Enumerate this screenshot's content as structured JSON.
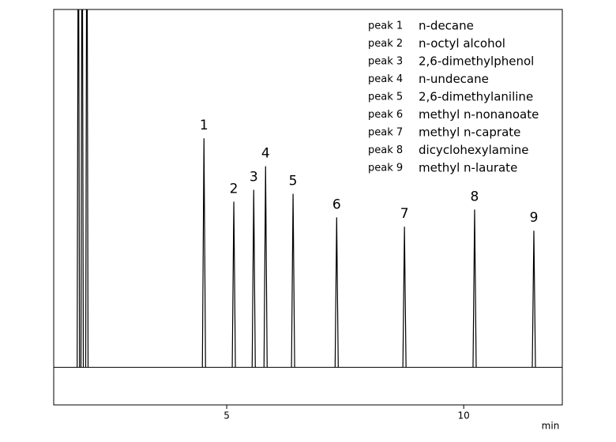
{
  "chart_data": {
    "type": "chromatogram",
    "x_label": "min",
    "xlim": [
      1.35,
      12.08
    ],
    "xticks": [
      5,
      10
    ],
    "ylim": [
      -10.5,
      100
    ],
    "color": "#000000",
    "solvent_peaks": [
      {
        "time": 1.87,
        "height": 150
      },
      {
        "time": 1.95,
        "height": 150
      },
      {
        "time": 2.05,
        "height": 150
      }
    ],
    "peaks": [
      {
        "label": "1",
        "time": 4.52,
        "height": 64
      },
      {
        "label": "2",
        "time": 5.15,
        "height": 46.3
      },
      {
        "label": "3",
        "time": 5.57,
        "height": 49.6
      },
      {
        "label": "4",
        "time": 5.82,
        "height": 56.2
      },
      {
        "label": "5",
        "time": 6.4,
        "height": 48.5
      },
      {
        "label": "6",
        "time": 7.32,
        "height": 41.9
      },
      {
        "label": "7",
        "time": 8.75,
        "height": 39.3
      },
      {
        "label": "8",
        "time": 10.23,
        "height": 44.1
      },
      {
        "label": "9",
        "time": 11.48,
        "height": 38.2
      }
    ],
    "legend": [
      {
        "peak": "peak 1",
        "name": "n-decane"
      },
      {
        "peak": "peak 2",
        "name": "n-octyl alcohol"
      },
      {
        "peak": "peak 3",
        "name": "2,6-dimethylphenol"
      },
      {
        "peak": "peak 4",
        "name": "n-undecane"
      },
      {
        "peak": "peak 5",
        "name": "2,6-dimethylaniline"
      },
      {
        "peak": "peak 6",
        "name": "methyl n-nonanoate"
      },
      {
        "peak": "peak 7",
        "name": "methyl n-caprate"
      },
      {
        "peak": "peak 8",
        "name": "dicyclohexylamine"
      },
      {
        "peak": "peak 9",
        "name": "methyl n-laurate"
      }
    ]
  }
}
